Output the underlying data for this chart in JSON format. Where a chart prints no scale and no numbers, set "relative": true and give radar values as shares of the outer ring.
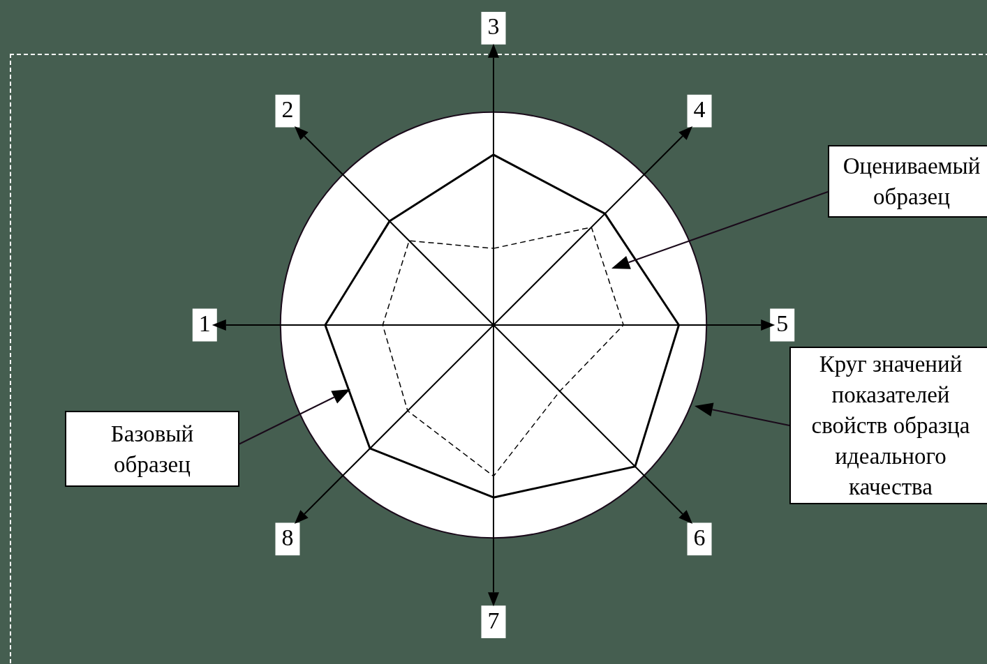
{
  "chart_data": {
    "type": "radar",
    "relative": true,
    "categories": [
      "3",
      "4",
      "5",
      "6",
      "7",
      "8",
      "1",
      "2"
    ],
    "series": [
      {
        "name": "Базовый образец",
        "color": "#000000",
        "line_style": "solid",
        "values": [
          0.8,
          0.74,
          0.87,
          0.94,
          0.81,
          0.82,
          0.79,
          0.69
        ]
      },
      {
        "name": "Оцениваемый образец",
        "color": "#000000",
        "line_style": "dashed",
        "values": [
          0.36,
          0.65,
          0.61,
          0.44,
          0.71,
          0.57,
          0.52,
          0.56
        ]
      }
    ],
    "annotations": [
      "Круг значений показателей свойств образца идеального качества"
    ],
    "legend": false,
    "marker": "none",
    "grid": false
  }
}
